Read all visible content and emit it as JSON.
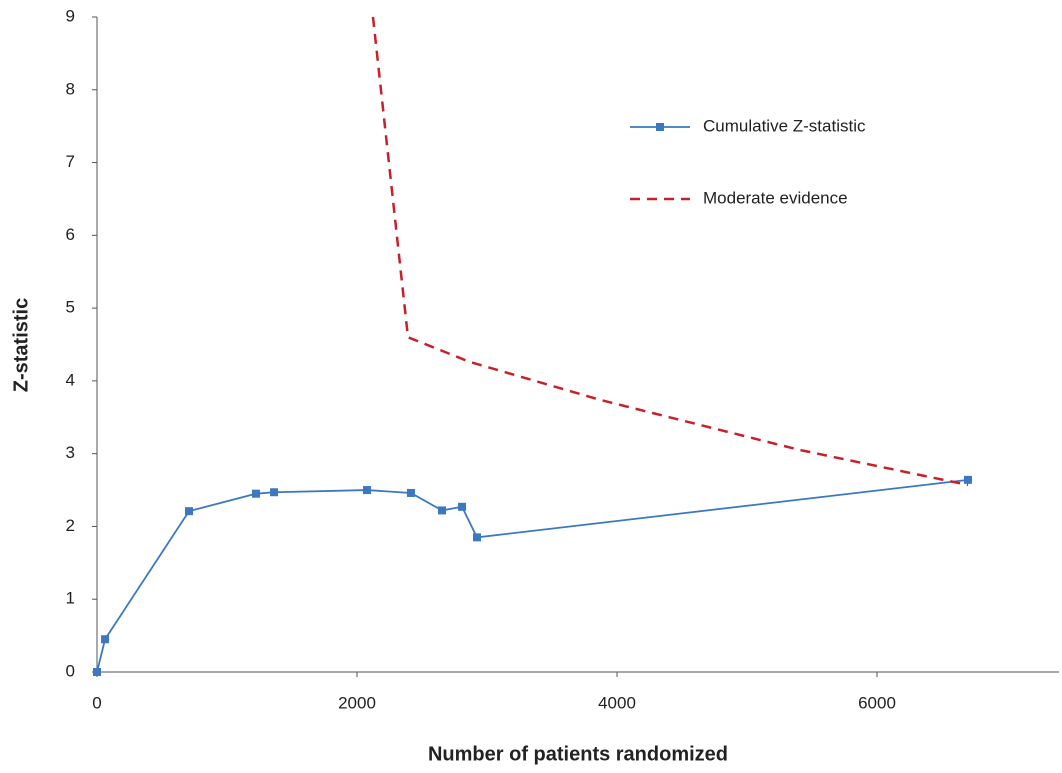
{
  "chart_data": {
    "type": "line",
    "xlabel": "Number of patients randomized",
    "ylabel": "Z-statistic",
    "xlim": [
      0,
      7400
    ],
    "xticks": [
      0,
      2000,
      4000,
      6000
    ],
    "ylim": [
      0,
      9
    ],
    "yticks": [
      0,
      1,
      2,
      3,
      4,
      5,
      6,
      7,
      8,
      9
    ],
    "grid": false,
    "legend": "upper right",
    "series": [
      {
        "name": "Cumulative Z-statistic",
        "color": "#3b78c0",
        "style": "solid",
        "marker": "square",
        "x": [
          0,
          62,
          708,
          1223,
          1362,
          2077,
          2415,
          2654,
          2808,
          2923,
          6700
        ],
        "values": [
          0,
          0.45,
          2.21,
          2.45,
          2.47,
          2.5,
          2.46,
          2.22,
          2.27,
          1.85,
          2.64
        ]
      },
      {
        "name": "Moderate evidence",
        "color": "#c8202a",
        "style": "dashed",
        "marker": "none",
        "x": [
          2123,
          2392,
          2869,
          3869,
          5408,
          6700
        ],
        "values": [
          9,
          4.6,
          4.26,
          3.74,
          3.05,
          2.57
        ]
      }
    ]
  }
}
